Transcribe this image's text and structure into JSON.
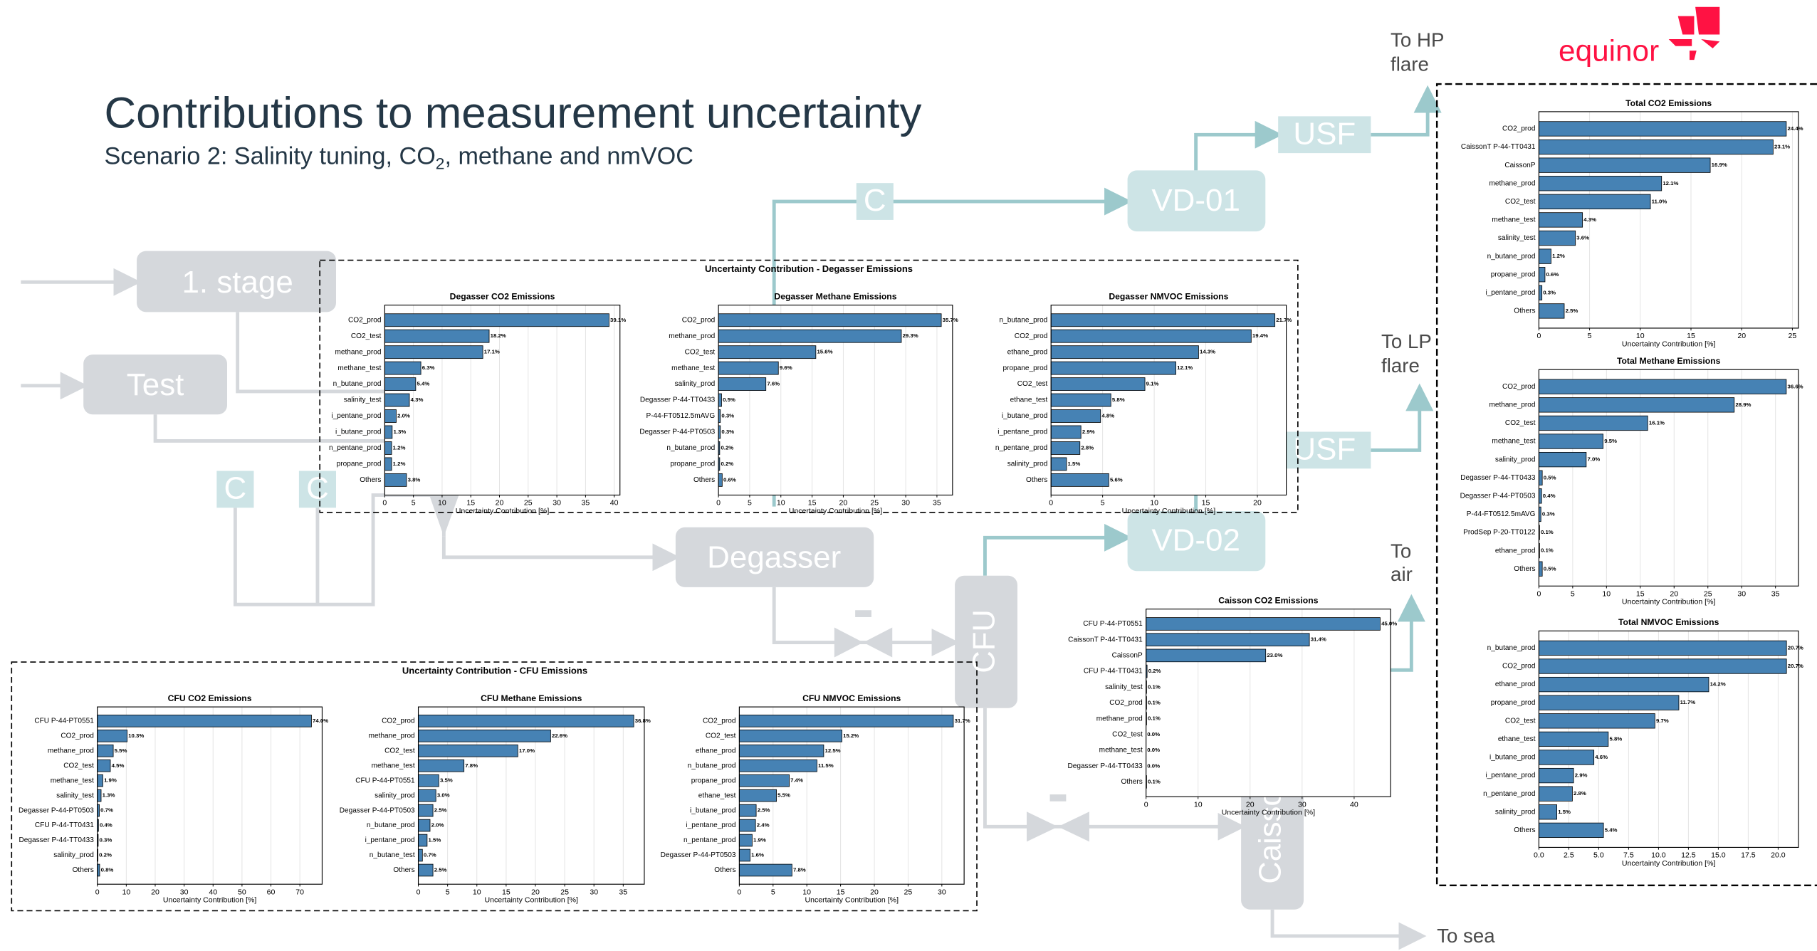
{
  "title": "Contributions to measurement uncertainty",
  "subtitle": [
    "Scenario 2: Salinity tuning, CO",
    "2",
    ", methane and nmVOC"
  ],
  "logo": "equinor",
  "groups": [
    {
      "title": "Uncertainty Contribution - Degasser Emissions"
    },
    {
      "title": "Uncertainty Contribution - CFU Emissions"
    }
  ],
  "diagram": {
    "nodes": [
      {
        "label": "1. stage"
      },
      {
        "label": "Test"
      },
      {
        "label": "C"
      },
      {
        "label": "C"
      },
      {
        "label": "Degasser"
      },
      {
        "label": "CFU"
      },
      {
        "label": "VD-01"
      },
      {
        "label": "VD-02"
      },
      {
        "label": "USF"
      },
      {
        "label": "USF"
      },
      {
        "label": "C"
      },
      {
        "label": "Caisson"
      }
    ],
    "outputs": [
      {
        "lines": [
          "To HP",
          "flare"
        ]
      },
      {
        "lines": [
          "To LP",
          "flare"
        ]
      },
      {
        "lines": [
          "To",
          "air"
        ]
      },
      {
        "lines": [
          "To sea"
        ]
      }
    ]
  },
  "chart_data": [
    {
      "type": "bar",
      "orientation": "horizontal",
      "title": "Degasser CO2 Emissions",
      "xlabel": "Uncertainty Contribution [%]",
      "color": "#4682b4",
      "grid": true,
      "categories": [
        "CO2_prod",
        "CO2_test",
        "methane_prod",
        "methane_test",
        "n_butane_prod",
        "salinity_test",
        "i_pentane_prod",
        "i_butane_prod",
        "n_pentane_prod",
        "propane_prod",
        "Others"
      ],
      "values": [
        39.1,
        18.2,
        17.1,
        6.3,
        5.4,
        4.3,
        2.0,
        1.3,
        1.2,
        1.2,
        3.8
      ],
      "value_labels": [
        "39.1%",
        "18.2%",
        "17.1%",
        "6.3%",
        "5.4%",
        "4.3%",
        "2.0%",
        "1.3%",
        "1.2%",
        "1.2%",
        "3.8%"
      ],
      "xlim": [
        0,
        41
      ],
      "xticks": [
        0,
        5,
        10,
        15,
        20,
        25,
        30,
        35,
        40
      ]
    },
    {
      "type": "bar",
      "orientation": "horizontal",
      "title": "Degasser Methane Emissions",
      "xlabel": "Uncertainty Contribution [%]",
      "color": "#4682b4",
      "grid": true,
      "categories": [
        "CO2_prod",
        "methane_prod",
        "CO2_test",
        "methane_test",
        "salinity_prod",
        "Degasser P-44-TT0433",
        "P-44-FT0512.5mAVG",
        "Degasser P-44-PT0503",
        "n_butane_prod",
        "propane_prod",
        "Others"
      ],
      "values": [
        35.7,
        29.3,
        15.6,
        9.6,
        7.6,
        0.5,
        0.3,
        0.3,
        0.2,
        0.2,
        0.6
      ],
      "value_labels": [
        "35.7%",
        "29.3%",
        "15.6%",
        "9.6%",
        "7.6%",
        "0.5%",
        "0.3%",
        "0.3%",
        "0.2%",
        "0.2%",
        "0.6%"
      ],
      "xlim": [
        0,
        37.5
      ],
      "xticks": [
        0,
        5,
        10,
        15,
        20,
        25,
        30,
        35
      ]
    },
    {
      "type": "bar",
      "orientation": "horizontal",
      "title": "Degasser NMVOC Emissions",
      "xlabel": "Uncertainty Contribution [%]",
      "color": "#4682b4",
      "grid": true,
      "categories": [
        "n_butane_prod",
        "CO2_prod",
        "ethane_prod",
        "propane_prod",
        "CO2_test",
        "ethane_test",
        "i_butane_prod",
        "i_pentane_prod",
        "n_pentane_prod",
        "salinity_prod",
        "Others"
      ],
      "values": [
        21.7,
        19.4,
        14.3,
        12.1,
        9.1,
        5.8,
        4.8,
        2.9,
        2.8,
        1.5,
        5.6
      ],
      "value_labels": [
        "21.7%",
        "19.4%",
        "14.3%",
        "12.1%",
        "9.1%",
        "5.8%",
        "4.8%",
        "2.9%",
        "2.8%",
        "1.5%",
        "5.6%"
      ],
      "xlim": [
        0,
        22.8
      ],
      "xticks": [
        0,
        5,
        10,
        15,
        20
      ]
    },
    {
      "type": "bar",
      "orientation": "horizontal",
      "title": "CFU CO2 Emissions",
      "xlabel": "Uncertainty Contribution [%]",
      "color": "#4682b4",
      "grid": true,
      "categories": [
        "CFU P-44-PT0551",
        "CO2_prod",
        "methane_prod",
        "CO2_test",
        "methane_test",
        "salinity_test",
        "Degasser P-44-PT0503",
        "CFU P-44-TT0431",
        "Degasser P-44-TT0433",
        "salinity_prod",
        "Others"
      ],
      "values": [
        74.0,
        10.3,
        5.5,
        4.5,
        1.9,
        1.3,
        0.7,
        0.4,
        0.3,
        0.2,
        0.8
      ],
      "value_labels": [
        "74.0%",
        "10.3%",
        "5.5%",
        "4.5%",
        "1.9%",
        "1.3%",
        "0.7%",
        "0.4%",
        "0.3%",
        "0.2%",
        "0.8%"
      ],
      "xlim": [
        0,
        77.7
      ],
      "xticks": [
        0,
        10,
        20,
        30,
        40,
        50,
        60,
        70
      ]
    },
    {
      "type": "bar",
      "orientation": "horizontal",
      "title": "CFU Methane Emissions",
      "xlabel": "Uncertainty Contribution [%]",
      "color": "#4682b4",
      "grid": true,
      "categories": [
        "CO2_prod",
        "methane_prod",
        "CO2_test",
        "methane_test",
        "CFU P-44-PT0551",
        "salinity_prod",
        "Degasser P-44-PT0503",
        "n_butane_prod",
        "i_pentane_prod",
        "n_butane_test",
        "Others"
      ],
      "values": [
        36.8,
        22.6,
        17.0,
        7.8,
        3.5,
        3.0,
        2.5,
        2.0,
        1.5,
        0.7,
        2.5
      ],
      "value_labels": [
        "36.8%",
        "22.6%",
        "17.0%",
        "7.8%",
        "3.5%",
        "3.0%",
        "2.5%",
        "2.0%",
        "1.5%",
        "0.7%",
        "2.5%"
      ],
      "xlim": [
        0,
        38.6
      ],
      "xticks": [
        0,
        5,
        10,
        15,
        20,
        25,
        30,
        35
      ]
    },
    {
      "type": "bar",
      "orientation": "horizontal",
      "title": "CFU NMVOC Emissions",
      "xlabel": "Uncertainty Contribution [%]",
      "color": "#4682b4",
      "grid": true,
      "categories": [
        "CO2_prod",
        "CO2_test",
        "ethane_prod",
        "n_butane_prod",
        "propane_prod",
        "ethane_test",
        "i_butane_prod",
        "i_pentane_prod",
        "n_pentane_prod",
        "Degasser P-44-PT0503",
        "Others"
      ],
      "values": [
        31.7,
        15.2,
        12.5,
        11.5,
        7.4,
        5.5,
        2.5,
        2.4,
        1.9,
        1.6,
        7.8
      ],
      "value_labels": [
        "31.7%",
        "15.2%",
        "12.5%",
        "11.5%",
        "7.4%",
        "5.5%",
        "2.5%",
        "2.4%",
        "1.9%",
        "1.6%",
        "7.8%"
      ],
      "xlim": [
        0,
        33.3
      ],
      "xticks": [
        0,
        5,
        10,
        15,
        20,
        25,
        30
      ]
    },
    {
      "type": "bar",
      "orientation": "horizontal",
      "title": "Caisson CO2 Emissions",
      "xlabel": "Uncertainty Contribution [%]",
      "color": "#4682b4",
      "grid": true,
      "categories": [
        "CFU P-44-PT0551",
        "CaissonT P-44-TT0431",
        "CaissonP",
        "CFU P-44-TT0431",
        "salinity_test",
        "CO2_prod",
        "methane_prod",
        "CO2_test",
        "methane_test",
        "Degasser P-44-TT0433",
        "Others"
      ],
      "values": [
        45.0,
        31.4,
        23.0,
        0.2,
        0.1,
        0.1,
        0.1,
        0.0,
        0.0,
        0.0,
        0.1
      ],
      "value_labels": [
        "45.0%",
        "31.4%",
        "23.0%",
        "0.2%",
        "0.1%",
        "0.1%",
        "0.1%",
        "0.0%",
        "0.0%",
        "0.0%",
        "0.1%"
      ],
      "xlim": [
        0,
        47
      ],
      "xticks": [
        0,
        10,
        20,
        30,
        40
      ]
    },
    {
      "type": "bar",
      "orientation": "horizontal",
      "title": "Total CO2 Emissions",
      "xlabel": "Uncertainty Contribution [%]",
      "color": "#4682b4",
      "grid": true,
      "categories": [
        "CO2_prod",
        "CaissonT P-44-TT0431",
        "CaissonP",
        "methane_prod",
        "CO2_test",
        "methane_test",
        "salinity_test",
        "n_butane_prod",
        "propane_prod",
        "i_pentane_prod",
        "Others"
      ],
      "values": [
        24.4,
        23.1,
        16.9,
        12.1,
        11.0,
        4.3,
        3.6,
        1.2,
        0.6,
        0.3,
        2.5
      ],
      "value_labels": [
        "24.4%",
        "23.1%",
        "16.9%",
        "12.1%",
        "11.0%",
        "4.3%",
        "3.6%",
        "1.2%",
        "0.6%",
        "0.3%",
        "2.5%"
      ],
      "xlim": [
        0,
        25.6
      ],
      "xticks": [
        0,
        5,
        10,
        15,
        20,
        25
      ]
    },
    {
      "type": "bar",
      "orientation": "horizontal",
      "title": "Total Methane Emissions",
      "xlabel": "Uncertainty Contribution [%]",
      "color": "#4682b4",
      "grid": true,
      "categories": [
        "CO2_prod",
        "methane_prod",
        "CO2_test",
        "methane_test",
        "salinity_prod",
        "Degasser P-44-TT0433",
        "Degasser P-44-PT0503",
        "P-44-FT0512.5mAVG",
        "ProdSep P-20-TT0122",
        "ethane_prod",
        "Others"
      ],
      "values": [
        36.6,
        28.9,
        16.1,
        9.5,
        7.0,
        0.5,
        0.4,
        0.3,
        0.1,
        0.1,
        0.5
      ],
      "value_labels": [
        "36.6%",
        "28.9%",
        "16.1%",
        "9.5%",
        "7.0%",
        "0.5%",
        "0.4%",
        "0.3%",
        "0.1%",
        "0.1%",
        "0.5%"
      ],
      "xlim": [
        0,
        38.4
      ],
      "xticks": [
        0,
        5,
        10,
        15,
        20,
        25,
        30,
        35
      ]
    },
    {
      "type": "bar",
      "orientation": "horizontal",
      "title": "Total NMVOC Emissions",
      "xlabel": "Uncertainty Contribution [%]",
      "color": "#4682b4",
      "grid": true,
      "categories": [
        "n_butane_prod",
        "CO2_prod",
        "ethane_prod",
        "propane_prod",
        "CO2_test",
        "ethane_test",
        "i_butane_prod",
        "i_pentane_prod",
        "n_pentane_prod",
        "salinity_prod",
        "Others"
      ],
      "values": [
        20.7,
        20.7,
        14.2,
        11.7,
        9.7,
        5.8,
        4.6,
        2.9,
        2.8,
        1.5,
        5.4
      ],
      "value_labels": [
        "20.7%",
        "20.7%",
        "14.2%",
        "11.7%",
        "9.7%",
        "5.8%",
        "4.6%",
        "2.9%",
        "2.8%",
        "1.5%",
        "5.4%"
      ],
      "xlim": [
        0,
        21.7
      ],
      "xticks": [
        {
          "value": 0,
          "label": "0.0"
        },
        2.5,
        {
          "value": 5,
          "label": "5.0"
        },
        7.5,
        {
          "value": 10,
          "label": "10.0"
        },
        12.5,
        {
          "value": 15,
          "label": "15.0"
        },
        17.5,
        {
          "value": 20,
          "label": "20.0"
        }
      ]
    }
  ]
}
